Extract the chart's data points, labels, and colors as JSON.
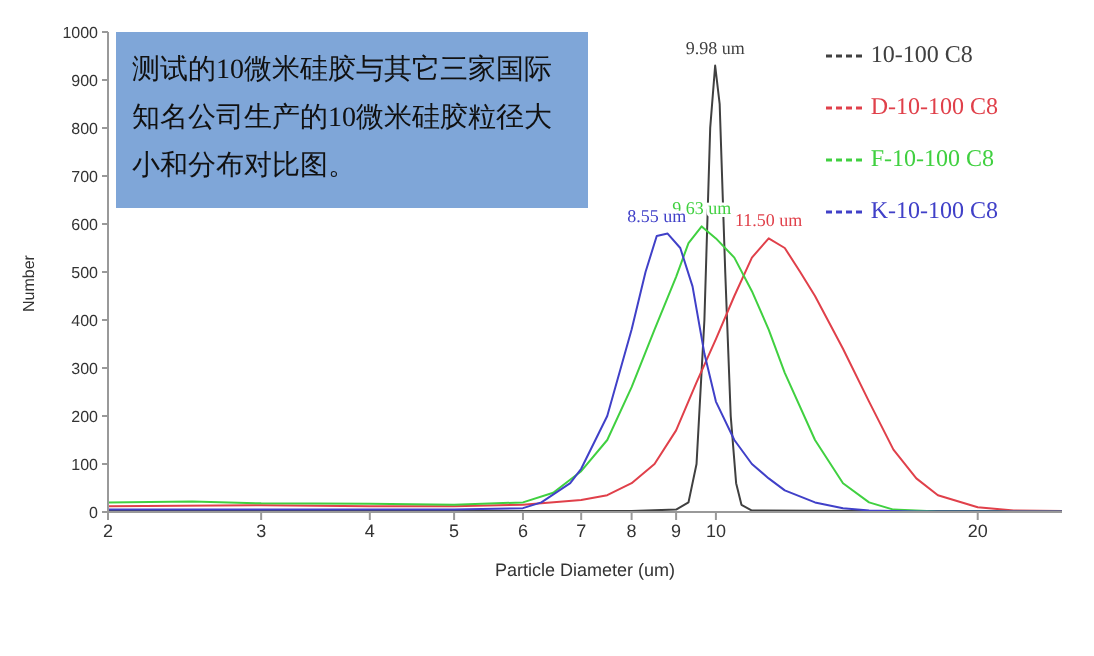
{
  "chart_data": {
    "type": "line",
    "title": "测试的10微米硅胶与其它三家国际知名公司生产的10微米硅胶粒径大小和分布对比图。",
    "xlabel": "Particle Diameter (um)",
    "ylabel": "Number",
    "log": "x",
    "xlim": [
      2,
      25
    ],
    "xticks": [
      2,
      3,
      4,
      5,
      6,
      7,
      8,
      9,
      10,
      20
    ],
    "ylim": [
      0,
      1000
    ],
    "yticks": [
      0,
      100,
      200,
      300,
      400,
      500,
      600,
      700,
      800,
      900,
      1000
    ],
    "grid": false,
    "legend": "top right",
    "marker": "none",
    "line_style": "solid",
    "series": [
      {
        "name": "10-100 C8",
        "color": "#404040",
        "x": [
          2,
          4,
          6,
          8,
          9,
          9.3,
          9.5,
          9.7,
          9.85,
          9.98,
          10.1,
          10.25,
          10.4,
          10.55,
          10.7,
          11,
          15,
          25
        ],
        "values": [
          3,
          3,
          2,
          2,
          5,
          20,
          100,
          400,
          800,
          930,
          850,
          500,
          200,
          60,
          15,
          3,
          2,
          2
        ]
      },
      {
        "name": "D-10-100 C8",
        "color": "#e0404a",
        "x": [
          2,
          3,
          4,
          5,
          6,
          7,
          7.5,
          8,
          8.5,
          9,
          9.5,
          10,
          10.5,
          11,
          11.5,
          12,
          12.5,
          13,
          14,
          15,
          16,
          17,
          18,
          20,
          22,
          25
        ],
        "values": [
          12,
          14,
          12,
          12,
          15,
          25,
          35,
          60,
          100,
          170,
          270,
          360,
          450,
          530,
          570,
          550,
          500,
          450,
          340,
          230,
          130,
          70,
          35,
          10,
          3,
          2
        ]
      },
      {
        "name": "F-10-100 C8",
        "color": "#40d040",
        "x": [
          2,
          2.5,
          3,
          4,
          5,
          6,
          6.5,
          7,
          7.5,
          8,
          8.5,
          9,
          9.3,
          9.63,
          10,
          10.5,
          11,
          11.5,
          12,
          13,
          14,
          15,
          16,
          18,
          25
        ],
        "values": [
          20,
          22,
          18,
          17,
          15,
          20,
          40,
          85,
          150,
          260,
          380,
          490,
          560,
          595,
          570,
          530,
          460,
          380,
          290,
          150,
          60,
          20,
          5,
          1,
          1
        ]
      },
      {
        "name": "K-10-100 C8",
        "color": "#4040c8",
        "x": [
          2,
          3,
          4,
          5,
          6,
          6.3,
          6.8,
          7,
          7.5,
          8,
          8.3,
          8.55,
          8.8,
          9.1,
          9.4,
          9.7,
          10,
          10.5,
          11,
          11.5,
          12,
          13,
          14,
          15,
          17,
          25
        ],
        "values": [
          5,
          5,
          5,
          5,
          8,
          20,
          60,
          90,
          200,
          380,
          500,
          575,
          580,
          550,
          470,
          330,
          230,
          150,
          100,
          70,
          45,
          20,
          8,
          3,
          1,
          1
        ]
      }
    ],
    "annotations": [
      {
        "text": "9.98 um",
        "x": 9.98,
        "y": 930
      },
      {
        "text": "11.50 um",
        "x": 11.5,
        "y": 570
      },
      {
        "text": "9.63 um",
        "x": 9.63,
        "y": 595
      },
      {
        "text": "8.55 um",
        "x": 8.55,
        "y": 580
      }
    ]
  }
}
